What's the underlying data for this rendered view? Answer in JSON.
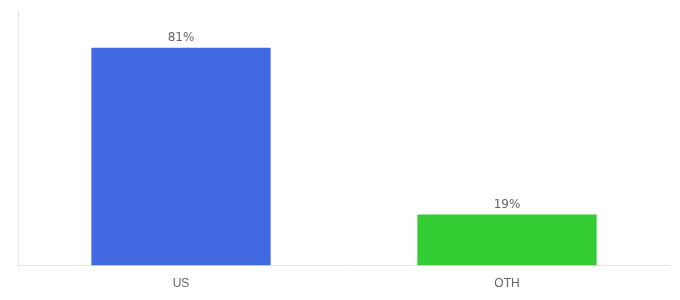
{
  "chart_data": {
    "type": "bar",
    "categories": [
      "US",
      "OTH"
    ],
    "values": [
      81,
      19
    ],
    "value_labels": [
      "81%",
      "19%"
    ],
    "colors": [
      "#4169e1",
      "#33cc33"
    ],
    "ylim": [
      0,
      95
    ],
    "grid": false,
    "tick_labels": "x",
    "data_labels": true
  }
}
